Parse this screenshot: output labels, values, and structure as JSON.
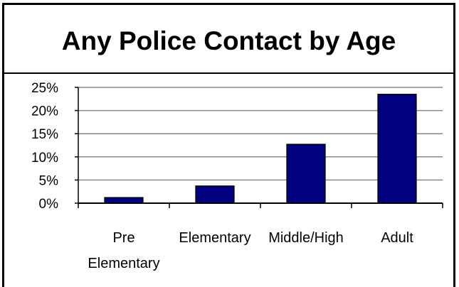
{
  "chart_data": {
    "type": "bar",
    "title": "Any Police Contact by Age",
    "categories": [
      [
        "Pre",
        "Elementary"
      ],
      [
        "Elementary"
      ],
      [
        "Middle/High"
      ],
      [
        "Adult"
      ]
    ],
    "values": [
      1.2,
      3.7,
      12.7,
      23.5
    ],
    "ylim": [
      0,
      25
    ],
    "yticks": [
      0,
      5,
      10,
      15,
      20,
      25
    ],
    "ytick_labels": [
      "0%",
      "5%",
      "10%",
      "15%",
      "20%",
      "25%"
    ],
    "grid": true,
    "colors": {
      "bar": "#000080",
      "bar_edge": "#000000",
      "grid": "#888888"
    }
  }
}
